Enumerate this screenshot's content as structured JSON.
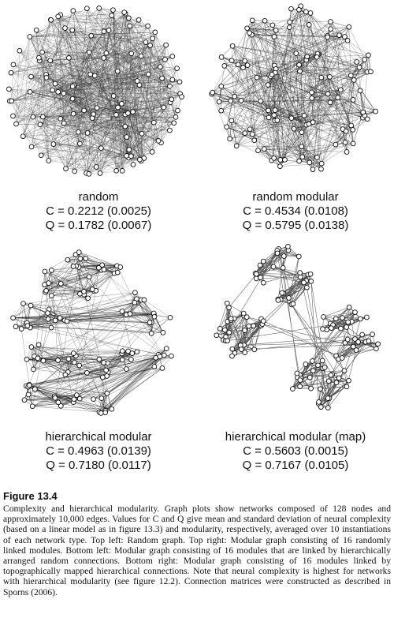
{
  "panels": [
    {
      "name": "random",
      "c_line": "C = 0.2212 (0.0025)",
      "q_line": "Q = 0.1782 (0.0067)"
    },
    {
      "name": "random modular",
      "c_line": "C = 0.4534 (0.0108)",
      "q_line": "Q = 0.5795 (0.0138)"
    },
    {
      "name": "hierarchical modular",
      "c_line": "C = 0.4963 (0.0139)",
      "q_line": "Q = 0.7180 (0.0117)"
    },
    {
      "name": "hierarchical modular (map)",
      "c_line": "C = 0.5603 (0.0015)",
      "q_line": "Q = 0.7167 (0.0105)"
    }
  ],
  "figure": {
    "label": "Figure 13.4",
    "caption": "Complexity and hierarchical modularity. Graph plots show networks composed of 128 nodes and approximately 10,000 edges. Values for C and Q give mean and standard deviation of neural complexity (based on a linear model as in figure 13.3) and modularity, respectively, averaged over 10 instantiations of each network type. Top left: Random graph. Top right: Modular graph consisting of 16 randomly linked modules. Bottom left: Modular graph consisting of 16 modules that are linked by hierarchically arranged random connections. Bottom right: Modular graph consisting of 16 modules linked by topographically mapped hierarchical connections. Note that neural complexity is highest for networks with hierarchical modularity (see figure 12.2). Connection matrices were constructed as described in Sporns (2006)."
  }
}
